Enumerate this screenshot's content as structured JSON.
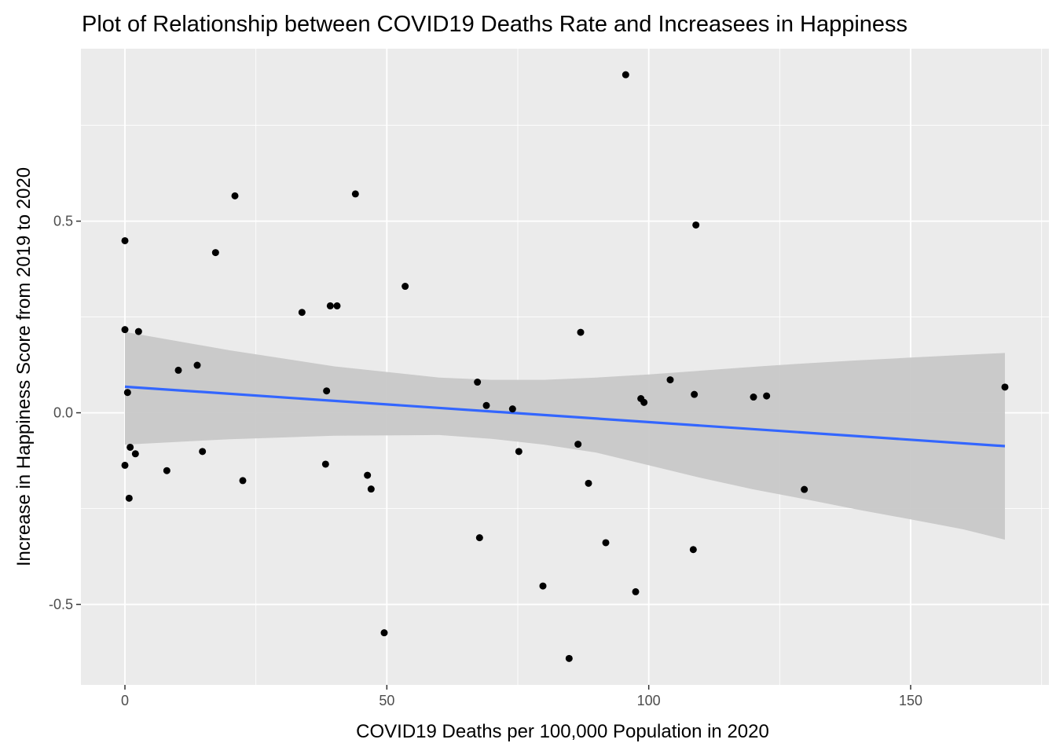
{
  "chart_data": {
    "type": "scatter",
    "title": "Plot of Relationship between COVID19 Deaths Rate and Increasees in Happiness",
    "xlabel": "COVID19 Deaths per 100,000 Population in 2020",
    "ylabel": "Increase in Happiness Score from 2019 to 2020",
    "xlim": [
      -8.4,
      176.4
    ],
    "ylim": [
      -0.71,
      0.95
    ],
    "x_ticks": [
      0,
      50,
      100,
      150
    ],
    "x_tick_labels": [
      "0",
      "50",
      "100",
      "150"
    ],
    "y_ticks": [
      -0.5,
      0.0,
      0.5
    ],
    "y_tick_labels": [
      "-0.5",
      "0.0",
      "0.5"
    ],
    "grid": true,
    "colors": {
      "panel_background": "#ebebeb",
      "grid": "#ffffff",
      "points": "#000000",
      "trend_line": "#3366ff",
      "confidence_band": "#c8c8c8"
    },
    "points": [
      {
        "x": 0.0,
        "y": 0.449
      },
      {
        "x": 0.0,
        "y": 0.217
      },
      {
        "x": 0.5,
        "y": 0.053
      },
      {
        "x": 0.0,
        "y": -0.137
      },
      {
        "x": 1.0,
        "y": -0.09
      },
      {
        "x": 2.0,
        "y": -0.107
      },
      {
        "x": 0.8,
        "y": -0.223
      },
      {
        "x": 2.6,
        "y": 0.212
      },
      {
        "x": 8.0,
        "y": -0.151
      },
      {
        "x": 10.2,
        "y": 0.111
      },
      {
        "x": 13.8,
        "y": 0.124
      },
      {
        "x": 14.8,
        "y": -0.101
      },
      {
        "x": 17.3,
        "y": 0.418
      },
      {
        "x": 21.0,
        "y": 0.566
      },
      {
        "x": 22.5,
        "y": -0.177
      },
      {
        "x": 33.8,
        "y": 0.262
      },
      {
        "x": 38.3,
        "y": -0.134
      },
      {
        "x": 38.5,
        "y": 0.057
      },
      {
        "x": 39.2,
        "y": 0.279
      },
      {
        "x": 40.5,
        "y": 0.279
      },
      {
        "x": 44.0,
        "y": 0.571
      },
      {
        "x": 46.3,
        "y": -0.163
      },
      {
        "x": 47.0,
        "y": -0.199
      },
      {
        "x": 49.5,
        "y": -0.574
      },
      {
        "x": 53.5,
        "y": 0.33
      },
      {
        "x": 67.3,
        "y": 0.08
      },
      {
        "x": 67.7,
        "y": -0.326
      },
      {
        "x": 69.0,
        "y": 0.019
      },
      {
        "x": 74.0,
        "y": 0.01
      },
      {
        "x": 75.2,
        "y": -0.101
      },
      {
        "x": 79.8,
        "y": -0.452
      },
      {
        "x": 84.8,
        "y": -0.641
      },
      {
        "x": 86.5,
        "y": -0.082
      },
      {
        "x": 87.0,
        "y": 0.21
      },
      {
        "x": 88.5,
        "y": -0.184
      },
      {
        "x": 91.8,
        "y": -0.339
      },
      {
        "x": 95.6,
        "y": 0.882
      },
      {
        "x": 97.5,
        "y": -0.467
      },
      {
        "x": 98.5,
        "y": 0.037
      },
      {
        "x": 99.1,
        "y": 0.027
      },
      {
        "x": 104.1,
        "y": 0.086
      },
      {
        "x": 108.5,
        "y": -0.357
      },
      {
        "x": 108.7,
        "y": 0.048
      },
      {
        "x": 109.0,
        "y": 0.49
      },
      {
        "x": 120.0,
        "y": 0.041
      },
      {
        "x": 122.5,
        "y": 0.044
      },
      {
        "x": 129.7,
        "y": -0.2
      },
      {
        "x": 168.0,
        "y": 0.067
      }
    ],
    "trend_line": {
      "x": [
        0.0,
        168.0
      ],
      "y": [
        0.068,
        -0.087
      ]
    },
    "confidence_band": {
      "x": [
        0,
        20,
        40,
        60,
        70,
        80,
        90,
        100,
        110,
        120,
        130,
        140,
        150,
        160,
        168
      ],
      "upper": [
        0.211,
        0.163,
        0.121,
        0.092,
        0.086,
        0.086,
        0.092,
        0.1,
        0.11,
        0.12,
        0.129,
        0.137,
        0.144,
        0.151,
        0.156
      ],
      "lower": [
        -0.083,
        -0.069,
        -0.06,
        -0.058,
        -0.068,
        -0.083,
        -0.104,
        -0.137,
        -0.17,
        -0.2,
        -0.226,
        -0.253,
        -0.278,
        -0.304,
        -0.331
      ]
    }
  }
}
